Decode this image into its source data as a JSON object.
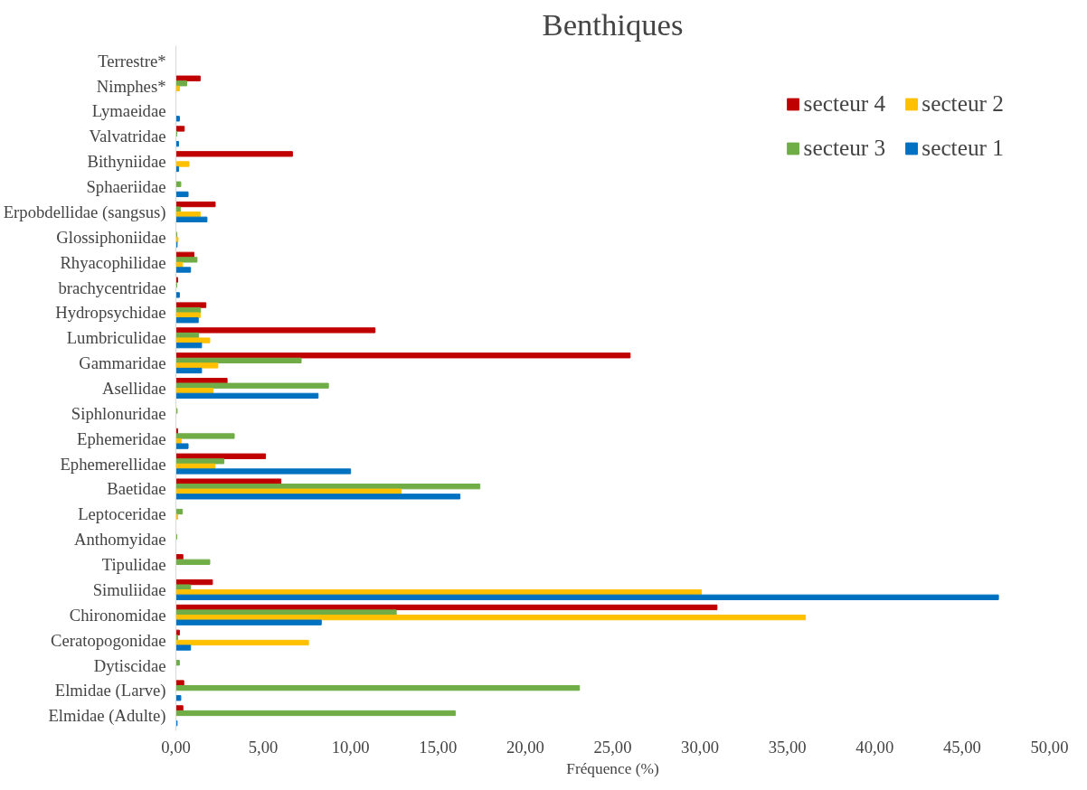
{
  "chart_data": {
    "type": "bar",
    "orientation": "horizontal",
    "title": "Benthiques",
    "xlabel": "Fréquence (%)",
    "categories": [
      "Terrestre*",
      "Nimphes*",
      "Lymaeidae",
      "Valvatridae",
      "Bithyniidae",
      "Sphaeriidae",
      "Erpobdellidae (sangsus)",
      "Glossiphoniidae",
      "Rhyacophilidae",
      "brachycentridae",
      "Hydropsychidae",
      "Lumbriculidae",
      "Gammaridae",
      "Asellidae",
      "Siphlonuridae",
      "Ephemeridae",
      "Ephemerellidae",
      "Baetidae",
      "Leptoceridae",
      "Anthomyidae",
      "Tipulidae",
      "Simuliidae",
      "Chironomidae",
      "Ceratopogonidae",
      "Dytiscidae",
      "Elmidae (Larve)",
      "Elmidae (Adulte)"
    ],
    "series": [
      {
        "name": "secteur 4",
        "color": "#c00000",
        "values": [
          0,
          1.39,
          0,
          0.48,
          6.67,
          0,
          2.25,
          0,
          1.03,
          0.1,
          1.72,
          11.4,
          26.0,
          2.93,
          0,
          0.1,
          5.13,
          6.01,
          0,
          0,
          0.4,
          2.09,
          30.97,
          0.2,
          0,
          0.45,
          0.4
        ]
      },
      {
        "name": "secteur 3",
        "color": "#70ad47",
        "values": [
          0,
          0.62,
          0,
          0.05,
          0,
          0.28,
          0.25,
          0.05,
          1.21,
          0.05,
          1.41,
          1.3,
          7.17,
          8.73,
          0.07,
          3.34,
          2.75,
          17.4,
          0.37,
          0.05,
          1.94,
          0.84,
          12.61,
          0.1,
          0.2,
          23.1,
          15.99
        ]
      },
      {
        "name": "secteur 2",
        "color": "#ffc000",
        "values": [
          0,
          0.2,
          0,
          0,
          0.75,
          0,
          1.39,
          0.12,
          0.38,
          0,
          1.39,
          1.94,
          2.4,
          2.13,
          0,
          0.3,
          2.24,
          12.89,
          0.1,
          0,
          0,
          30.07,
          36.03,
          7.59,
          0,
          0,
          0
        ]
      },
      {
        "name": "secteur 1",
        "color": "#0070c0",
        "values": [
          0,
          0,
          0.2,
          0.15,
          0.15,
          0.7,
          1.78,
          0.07,
          0.84,
          0.2,
          1.28,
          1.47,
          1.47,
          8.14,
          0,
          0.7,
          10.0,
          16.26,
          0,
          0,
          0,
          47.08,
          8.32,
          0.84,
          0,
          0.28,
          0.07
        ]
      }
    ],
    "xlim": [
      0,
      50
    ],
    "xticks": [
      {
        "value": 0,
        "label": "0,00"
      },
      {
        "value": 5,
        "label": "5,00"
      },
      {
        "value": 10,
        "label": "10,00"
      },
      {
        "value": 15,
        "label": "15,00"
      },
      {
        "value": 20,
        "label": "20,00"
      },
      {
        "value": 25,
        "label": "25,00"
      },
      {
        "value": 30,
        "label": "30,00"
      },
      {
        "value": 35,
        "label": "35,00"
      },
      {
        "value": 40,
        "label": "40,00"
      },
      {
        "value": 45,
        "label": "45,00"
      },
      {
        "value": 50,
        "label": "50,00"
      }
    ],
    "grid": false,
    "legend": "top right"
  }
}
